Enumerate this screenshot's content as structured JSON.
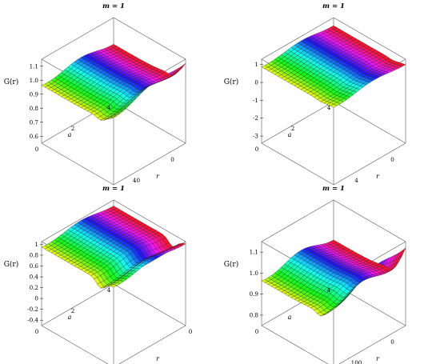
{
  "chart_data": [
    {
      "type": "surface",
      "title": "m = 1",
      "zlabel": "G(r)",
      "xlabel": "a",
      "ylabel": "r",
      "ztick_labels": [
        "1.1",
        "1.0",
        "0.9",
        "0.8",
        "0.7",
        "0.6"
      ],
      "a_tick_labels": [
        "0",
        "2",
        "4"
      ],
      "r_tick_labels": [
        "40",
        "0"
      ],
      "zlim": [
        0.55,
        1.15
      ],
      "surface": {
        "base_level": 0.98,
        "wave_amplitude": 0.02,
        "peak_at_r0": 1.14,
        "dip_near_r0": 0.94
      }
    },
    {
      "type": "surface",
      "title": "m = 1",
      "zlabel": "G(r)",
      "xlabel": "a",
      "ylabel": "r",
      "ztick_labels": [
        "1",
        "0",
        "-1",
        "-2",
        "-3"
      ],
      "a_tick_labels": [
        "0",
        "2",
        "4"
      ],
      "r_tick_labels": [
        "4",
        "0"
      ],
      "zlim": [
        -3.4,
        1.3
      ],
      "surface": {
        "base_level": 0.95,
        "wave_amplitude": 0.1,
        "peak_at_r0": 1.1,
        "dip_near_r0": 0.85
      }
    },
    {
      "type": "surface",
      "title": "m = 1",
      "zlabel": "G(r)",
      "xlabel": "a",
      "ylabel": "r",
      "ztick_labels": [
        "1",
        "0.8",
        "0.6",
        "0.4",
        "0.2",
        "0",
        "-0.2",
        "-0.4"
      ],
      "a_tick_labels": [
        "0",
        "2",
        "4"
      ],
      "r_tick_labels": [
        "0"
      ],
      "zlim": [
        -0.5,
        1.05
      ],
      "surface": {
        "base_level": 0.98,
        "wave_amplitude": 0.04,
        "peak_at_r0": 1.05,
        "dip_near_r0": 0.75
      }
    },
    {
      "type": "surface",
      "title": "m = 1",
      "zlabel": "G(r)",
      "xlabel": "a",
      "ylabel": "r",
      "ztick_labels": [
        "1.1",
        "1.0",
        "0.9",
        "0.8"
      ],
      "a_tick_labels": [
        "0",
        "4"
      ],
      "r_tick_labels": [
        "100",
        "0"
      ],
      "zlim": [
        0.75,
        1.15
      ],
      "surface": {
        "base_level": 0.98,
        "wave_amplitude": 0.02,
        "peak_at_r0": 1.14,
        "dip_near_r0": 0.94
      }
    }
  ]
}
